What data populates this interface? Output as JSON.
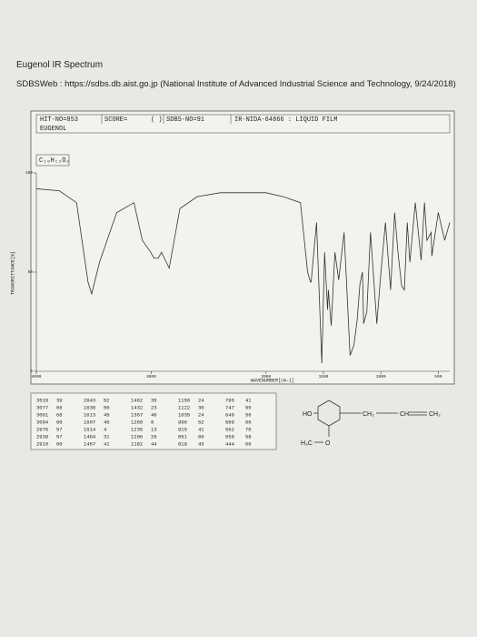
{
  "page": {
    "title": "Eugenol IR Spectrum",
    "source": "SDBSWeb : https://sdbs.db.aist.go.jp (National Institute of Advanced Industrial Science and Technology, 9/24/2018)",
    "header": {
      "hit": "HIT-NO=853",
      "score": "SCORE=",
      "paren": "( )",
      "sdbs": "SDBS-NO=91",
      "method": "IR-NIDA-64866 : LIQUID FILM",
      "compound": "EUGENOL",
      "formula": "C₁₀H₁₂O₂"
    },
    "peak_table": [
      [
        [
          3518,
          39
        ],
        [
          3077,
          66
        ],
        [
          3061,
          68
        ],
        [
          3004,
          60
        ],
        [
          2976,
          57
        ],
        [
          2939,
          57
        ],
        [
          2910,
          60
        ]
      ],
      [
        [
          2843,
          52
        ],
        [
          1638,
          50
        ],
        [
          1613,
          45
        ],
        [
          1607,
          45
        ],
        [
          1514,
          4
        ],
        [
          1464,
          31
        ],
        [
          1457,
          41
        ]
      ],
      [
        [
          1462,
          35
        ],
        [
          1432,
          23
        ],
        [
          1367,
          46
        ],
        [
          1268,
          8
        ],
        [
          1235,
          13
        ],
        [
          1206,
          26
        ],
        [
          1182,
          44
        ]
      ],
      [
        [
          1150,
          24
        ],
        [
          1122,
          30
        ],
        [
          1035,
          24
        ],
        [
          996,
          52
        ],
        [
          915,
          41
        ],
        [
          851,
          60
        ],
        [
          819,
          43
        ]
      ],
      [
        [
          795,
          41
        ],
        [
          747,
          55
        ],
        [
          649,
          56
        ],
        [
          599,
          66
        ],
        [
          562,
          70
        ],
        [
          556,
          58
        ],
        [
          444,
          66
        ]
      ]
    ],
    "structure": {
      "ho": "HO",
      "ch2a": "CH₂",
      "ch": "CH",
      "ch2b": "CH₂",
      "h3c": "H₃C",
      "o": "O"
    }
  },
  "chart_data": {
    "type": "line",
    "x_label": "WAVENUMBER[cm-1]",
    "y_label": "TRANSMITTANCE[%]",
    "color": "#333333",
    "x": [
      4000,
      3800,
      3650,
      3550,
      3518,
      3450,
      3300,
      3150,
      3077,
      3004,
      2976,
      2939,
      2910,
      2843,
      2750,
      2600,
      2400,
      2200,
      2000,
      1850,
      1700,
      1638,
      1613,
      1607,
      1560,
      1514,
      1490,
      1464,
      1457,
      1432,
      1400,
      1367,
      1320,
      1268,
      1235,
      1206,
      1182,
      1160,
      1150,
      1122,
      1090,
      1035,
      996,
      960,
      915,
      880,
      851,
      819,
      795,
      770,
      747,
      700,
      649,
      620,
      599,
      562,
      556,
      500,
      444,
      400
    ],
    "values": [
      92,
      91,
      85,
      45,
      39,
      55,
      80,
      85,
      66,
      60,
      57,
      57,
      60,
      52,
      82,
      88,
      90,
      90,
      90,
      88,
      85,
      50,
      45,
      45,
      75,
      4,
      60,
      31,
      41,
      23,
      60,
      46,
      70,
      8,
      13,
      26,
      44,
      50,
      24,
      30,
      70,
      24,
      52,
      75,
      41,
      80,
      60,
      43,
      41,
      75,
      55,
      85,
      56,
      85,
      66,
      70,
      58,
      80,
      66,
      75
    ],
    "xlim": [
      4000,
      400
    ],
    "ylim": [
      0,
      100
    ],
    "xticks": [
      4000,
      3000,
      2000,
      1500,
      1000,
      500
    ],
    "yticks": [
      0,
      50,
      100
    ]
  }
}
